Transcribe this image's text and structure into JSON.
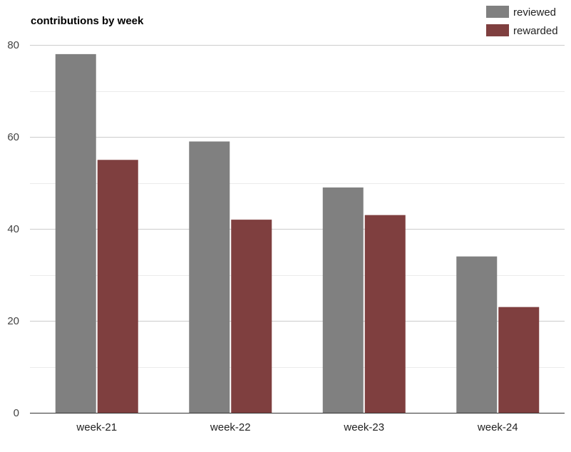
{
  "chart_data": {
    "type": "bar",
    "title": "contributions by week",
    "xlabel": "",
    "ylabel": "",
    "categories": [
      "week-21",
      "week-22",
      "week-23",
      "week-24"
    ],
    "series": [
      {
        "name": "reviewed",
        "values": [
          78,
          59,
          49,
          34
        ],
        "color": "#808080"
      },
      {
        "name": "rewarded",
        "values": [
          55,
          42,
          43,
          23
        ],
        "color": "#7f3f3f"
      }
    ],
    "ylim": [
      0,
      80
    ],
    "yticks": [
      0,
      20,
      40,
      60,
      80
    ],
    "grid": true,
    "minor_grid": true,
    "legend_position": "top-right"
  }
}
